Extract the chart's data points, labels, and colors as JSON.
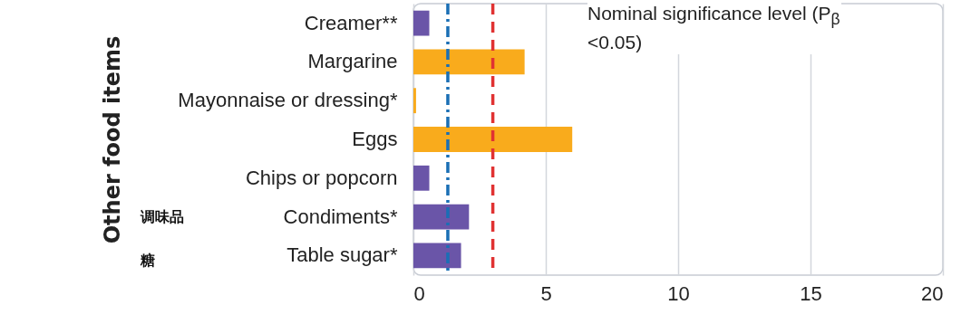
{
  "chart_data": {
    "type": "bar",
    "orientation": "horizontal",
    "ylabel": "Other food items",
    "categories": [
      "Creamer**",
      "Margarine",
      "Mayonnaise or dressing*",
      "Eggs",
      "Chips or popcorn",
      "Condiments*",
      "Table sugar*"
    ],
    "values": [
      0.6,
      4.2,
      0.1,
      6.0,
      0.6,
      2.1,
      1.8
    ],
    "colors": [
      "#6a55a8",
      "#f9ab1c",
      "#f9ab1c",
      "#f9ab1c",
      "#6a55a8",
      "#6a55a8",
      "#6a55a8"
    ],
    "xlim": [
      0,
      20
    ],
    "xticks": [
      0,
      5,
      10,
      15,
      20
    ],
    "grid": "x",
    "ref_lines": [
      {
        "axis": "x",
        "value": 1.3,
        "color": "#1a6fb5",
        "line_style": "dashdot"
      },
      {
        "axis": "x",
        "value": 3.0,
        "color": "#e03232",
        "line_style": "dashed"
      }
    ],
    "annotations": [
      "Nominal significance level (P$_{β}$ <0.05)",
      "调味品",
      "糖"
    ]
  }
}
